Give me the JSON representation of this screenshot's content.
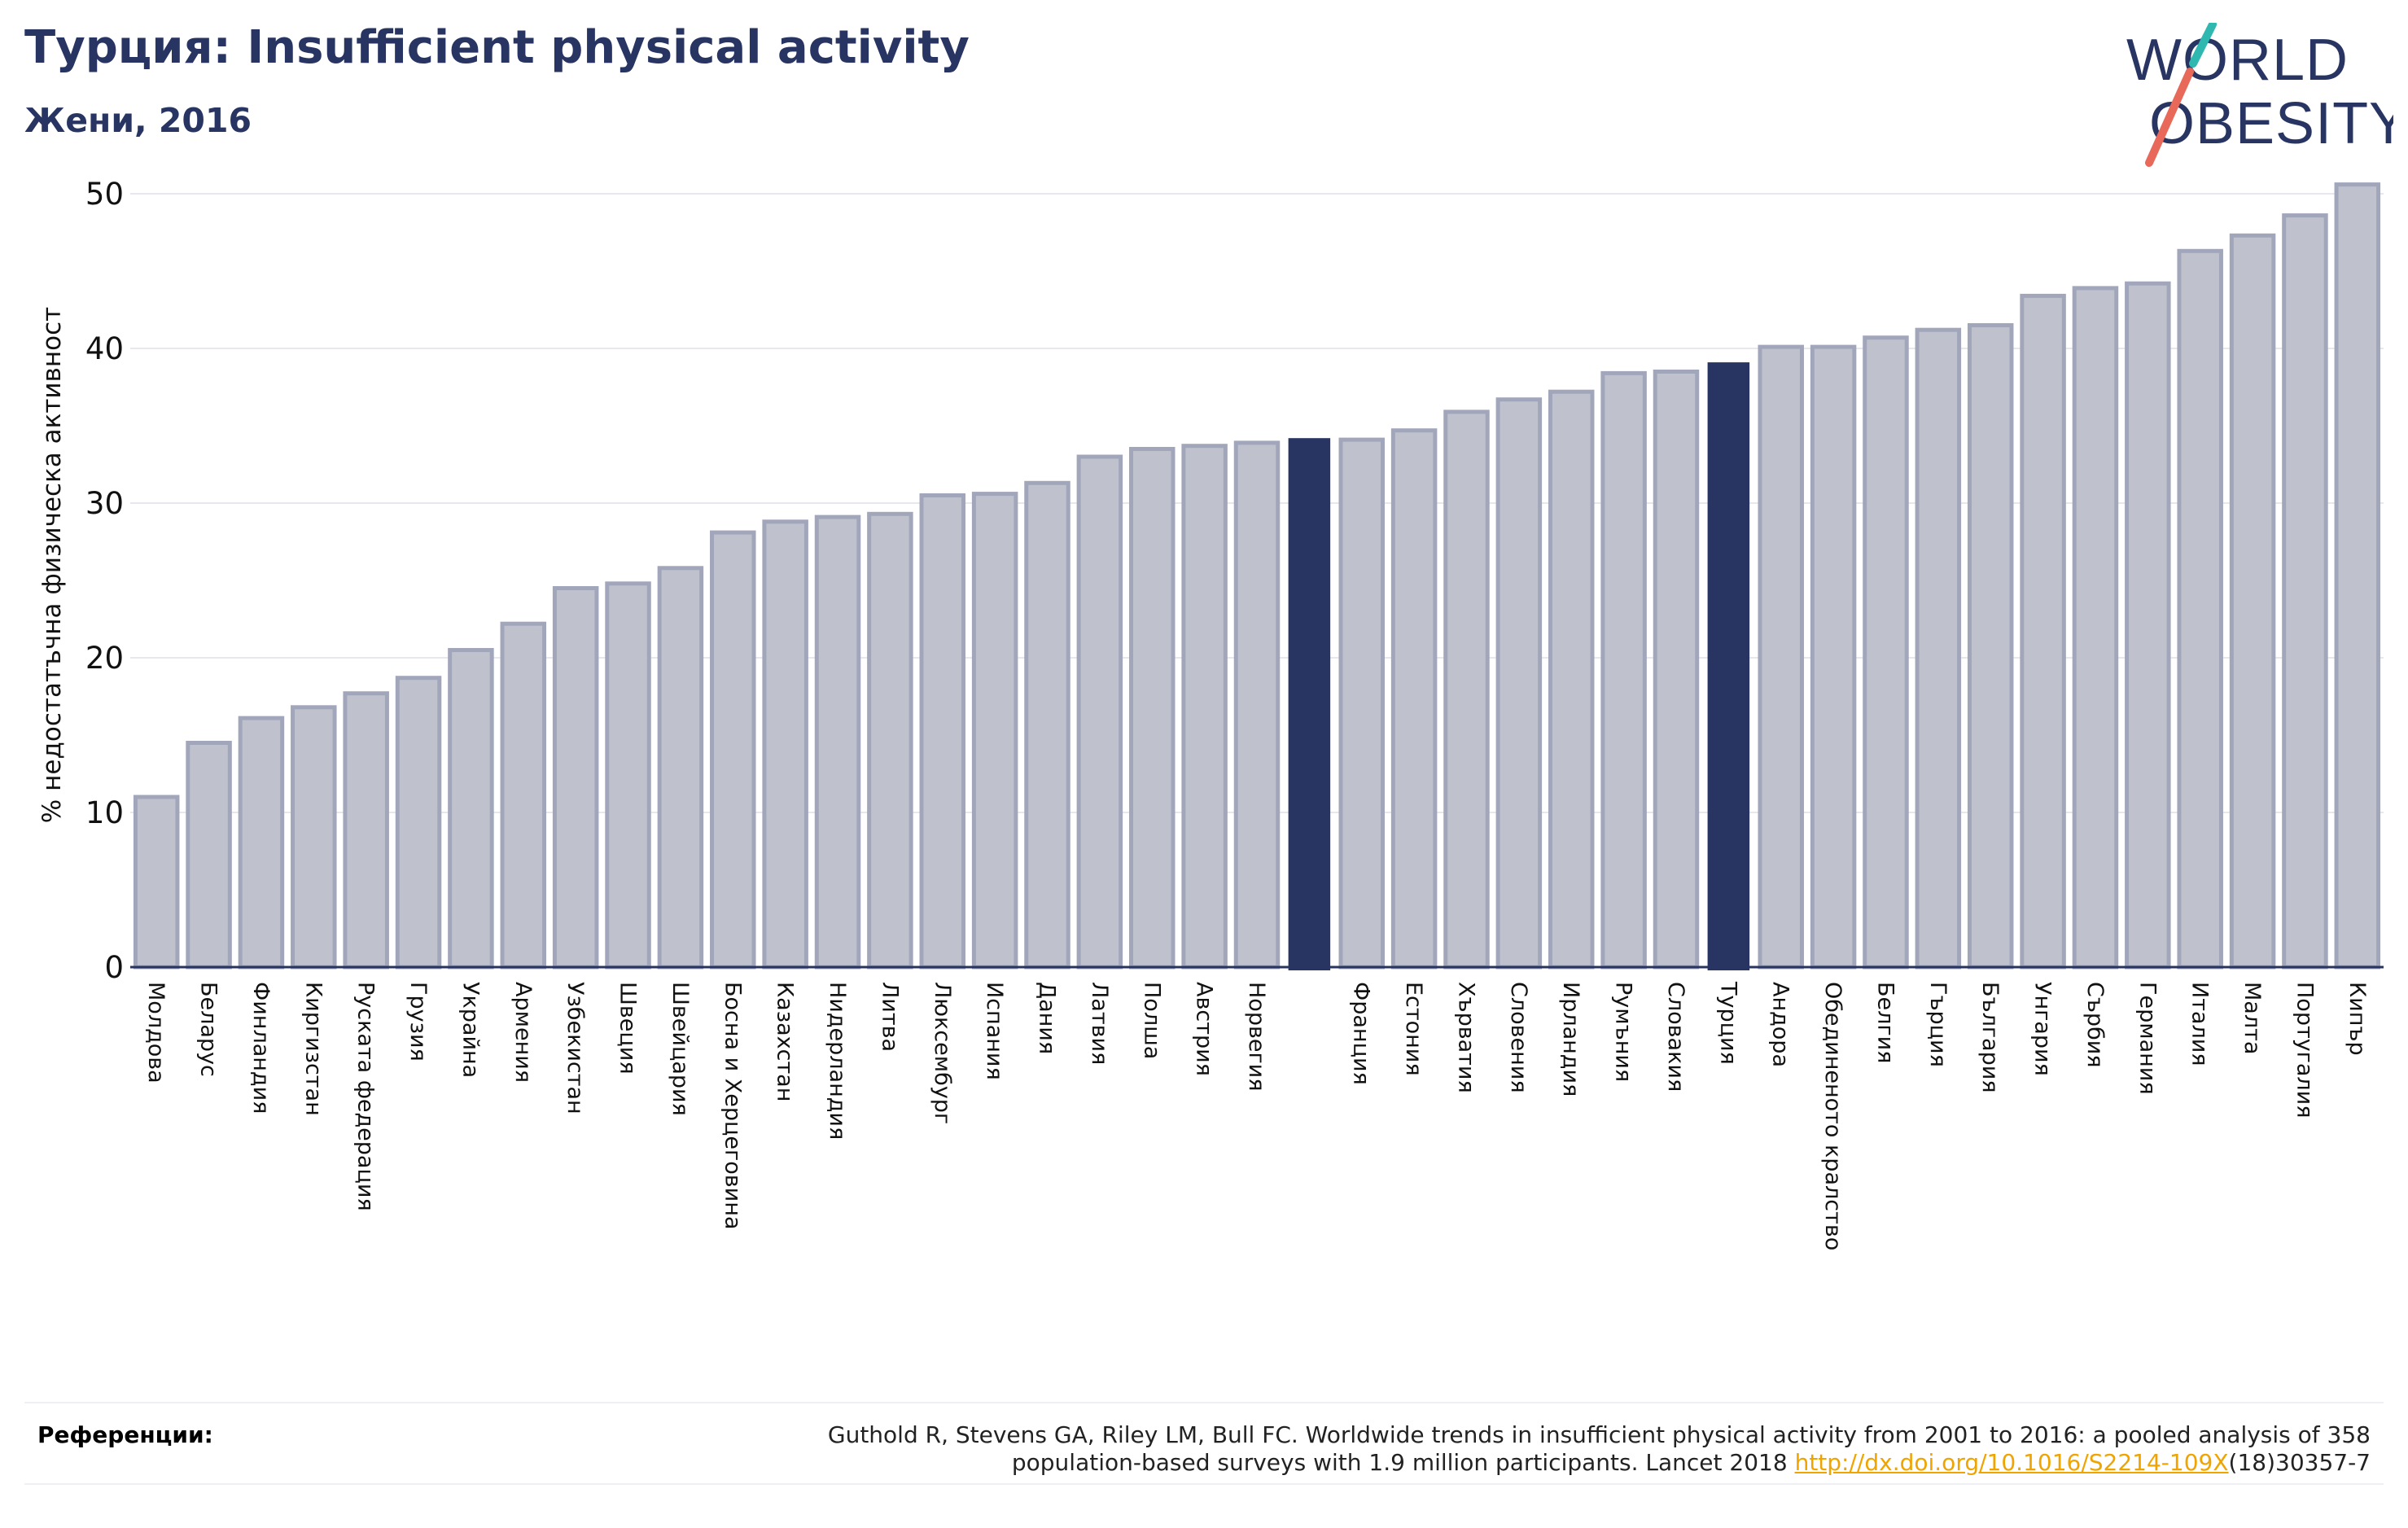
{
  "header": {
    "title": "Турция: Insufficient physical activity",
    "subtitle": "Жени, 2016"
  },
  "logo": {
    "line1": "WORLD",
    "line2": "OBESITY"
  },
  "colors": {
    "default_bar": "#bfc2cd",
    "default_edge": "#a2a6bb",
    "highlight_bar": "#283562",
    "title": "#283562",
    "accent_teal": "#2fb8b0",
    "accent_red": "#e8695a",
    "link": "#f0a400"
  },
  "chart_data": {
    "type": "bar",
    "ylabel": "% недостатъчна физическа активност",
    "ylim": [
      0,
      52
    ],
    "yticks": [
      0,
      10,
      20,
      30,
      40,
      50
    ],
    "grid": true,
    "categories": [
      "Молдова",
      "Беларус",
      "Финландия",
      "Киргизстан",
      "Руската федерация",
      "Грузия",
      "Украйна",
      "Армения",
      "Узбекистан",
      "Швеция",
      "Швейцария",
      "Босна и Херцеговина",
      "Казахстан",
      "Нидерландия",
      "Литва",
      "Люксембург",
      "Испания",
      "Дания",
      "Латвия",
      "Полша",
      "Австрия",
      "Норвегия",
      "",
      "Франция",
      "Естония",
      "Хърватия",
      "Словения",
      "Ирландия",
      "Румъния",
      "Словакия",
      "Турция",
      "Андора",
      "Обединеното кралство",
      "Белгия",
      "Гърция",
      "България",
      "Унгария",
      "Сърбия",
      "Германия",
      "Италия",
      "Малта",
      "Португалия",
      "Кипър"
    ],
    "values": [
      11.0,
      14.5,
      16.1,
      16.8,
      17.7,
      18.7,
      20.5,
      22.2,
      24.5,
      24.8,
      25.8,
      28.1,
      28.8,
      29.1,
      29.3,
      30.5,
      30.6,
      31.3,
      33.0,
      33.5,
      33.7,
      33.9,
      34.2,
      34.1,
      34.7,
      35.9,
      36.7,
      37.2,
      38.4,
      38.5,
      39.1,
      40.1,
      40.1,
      40.7,
      41.2,
      41.5,
      43.4,
      43.9,
      44.2,
      46.3,
      47.3,
      48.6,
      50.6
    ],
    "highlight": [
      22,
      30
    ]
  },
  "references": {
    "label": "Референции:",
    "line1": "Guthold R, Stevens GA, Riley LM, Bull FC. Worldwide trends in insufficient physical activity from 2001 to 2016: a pooled analysis of 358",
    "line2_pre": "population-based surveys with 1.9 million participants. Lancet 2018 ",
    "link": "http://dx.doi.org/10.1016/S2214-109X",
    "line2_post": "(18)30357-7"
  }
}
